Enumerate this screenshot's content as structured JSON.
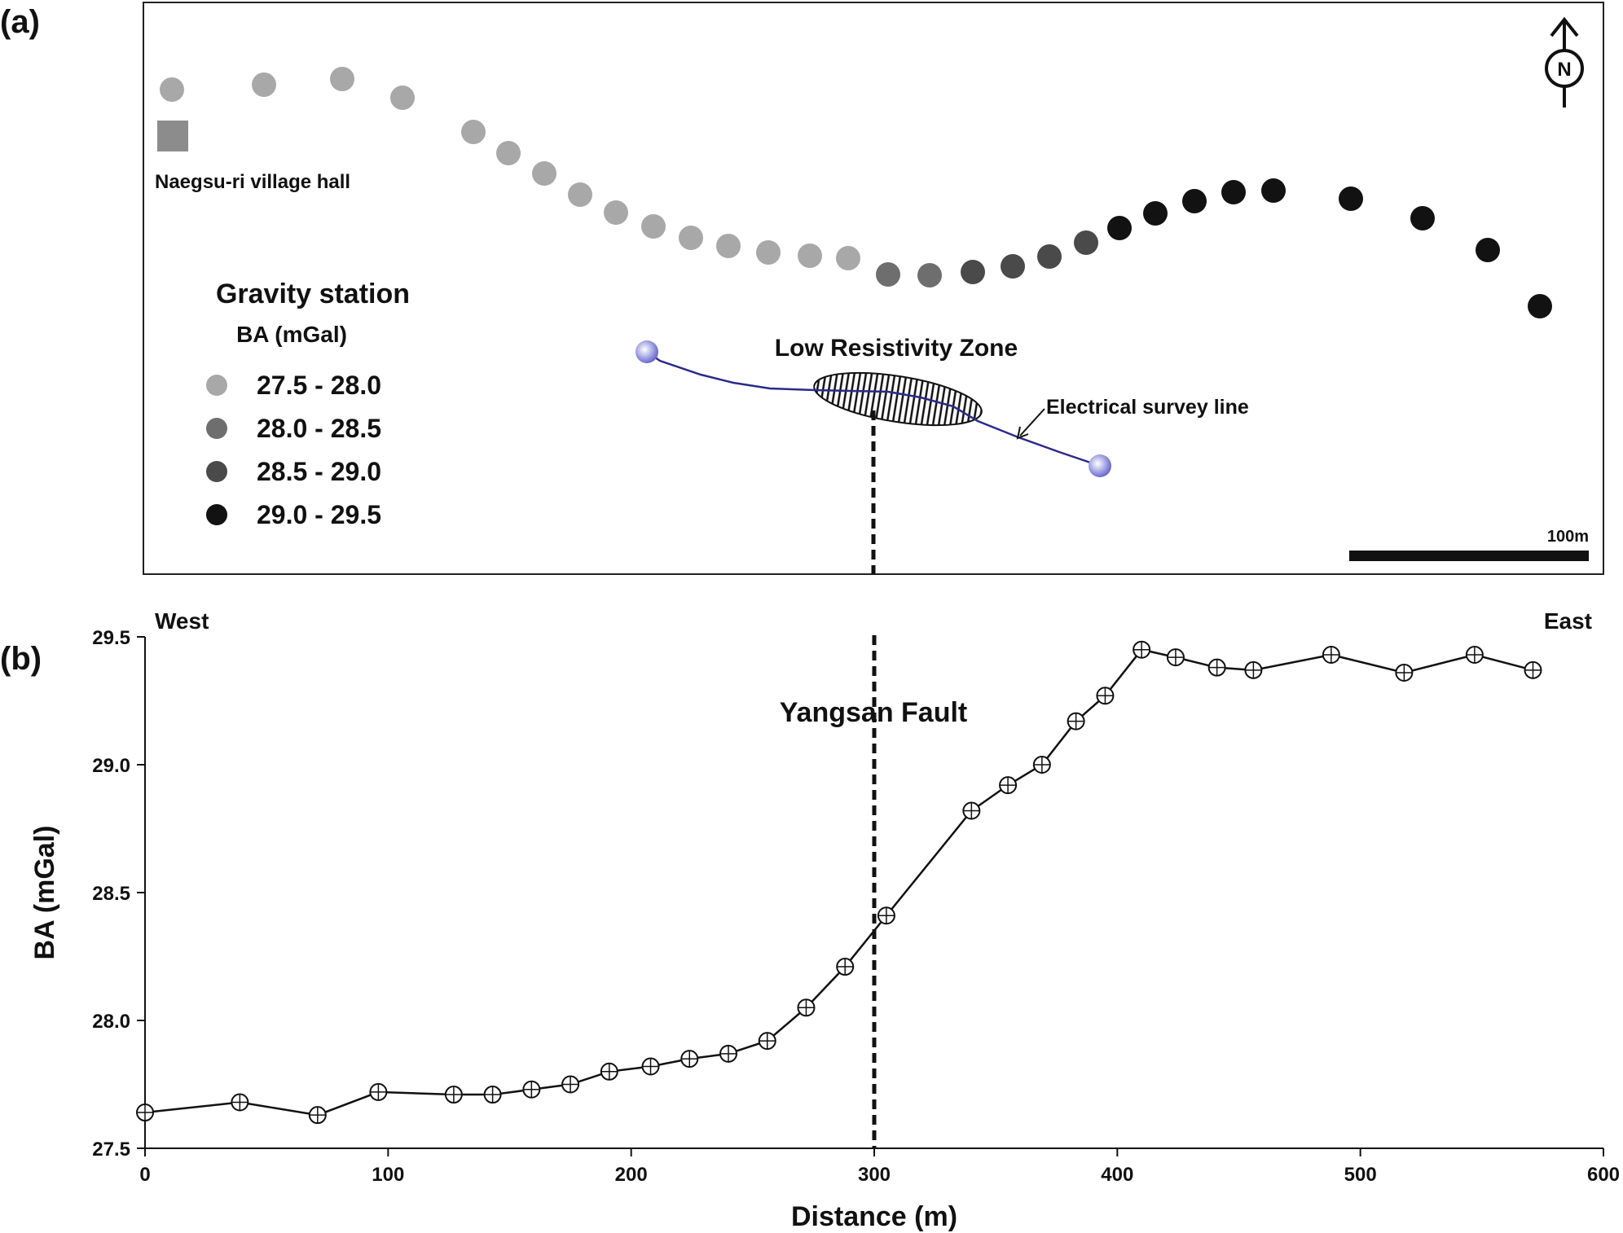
{
  "panels": {
    "a_label": "(a)",
    "b_label": "(b)"
  },
  "map": {
    "landmark_label": "Naegsu-ri village hall",
    "legend_title": "Gravity station",
    "legend_subtitle": "BA (mGal)",
    "legend_items": [
      {
        "label": "27.5 - 28.0",
        "color": "#a8a8a8"
      },
      {
        "label": "28.0 - 28.5",
        "color": "#6e6e6e"
      },
      {
        "label": "28.5 - 29.0",
        "color": "#4a4a4a"
      },
      {
        "label": "29.0 - 29.5",
        "color": "#121212"
      }
    ],
    "zone_label": "Low Resistivity Zone",
    "survey_line_label": "Electrical survey line",
    "north_label": "N",
    "scale_label": "100m",
    "station_classes": [
      0,
      0,
      0,
      0,
      0,
      0,
      0,
      0,
      0,
      0,
      0,
      0,
      0,
      0,
      0,
      1,
      1,
      2,
      2,
      2,
      2,
      3,
      3,
      3,
      3,
      3,
      3,
      3,
      3,
      3,
      3,
      3,
      3
    ],
    "survey_line_color": "#2a2a8a",
    "electrode_color": "#7b7bd0"
  },
  "chart_data": {
    "type": "line",
    "title": "",
    "xlabel": "Distance (m)",
    "ylabel": "BA (mGal)",
    "xlim": [
      0,
      600
    ],
    "ylim": [
      27.5,
      29.5
    ],
    "xticks": [
      0,
      100,
      200,
      300,
      400,
      500,
      600
    ],
    "yticks": [
      27.5,
      28.0,
      28.5,
      29.0,
      29.5
    ],
    "xtick_labels": [
      "0",
      "100",
      "200",
      "300",
      "400",
      "500",
      "600"
    ],
    "ytick_labels": [
      "27.5",
      "28.0",
      "28.5",
      "29.0",
      "29.5"
    ],
    "west_label": "West",
    "east_label": "East",
    "fault_label": "Yangsan Fault",
    "fault_x": 300,
    "x": [
      0,
      39,
      71,
      96,
      127,
      143,
      159,
      175,
      191,
      208,
      224,
      240,
      256,
      272,
      288,
      305,
      340,
      355,
      369,
      383,
      395,
      410,
      424,
      441,
      456,
      488,
      518,
      547,
      571
    ],
    "y": [
      27.64,
      27.68,
      27.63,
      27.72,
      27.71,
      27.71,
      27.73,
      27.75,
      27.8,
      27.82,
      27.85,
      27.87,
      27.92,
      28.05,
      28.21,
      28.41,
      28.82,
      28.92,
      29.0,
      29.17,
      29.27,
      29.45,
      29.42,
      29.38,
      29.37,
      29.43,
      29.36,
      29.43,
      29.37
    ],
    "grid": false,
    "line_color": "#111111"
  }
}
